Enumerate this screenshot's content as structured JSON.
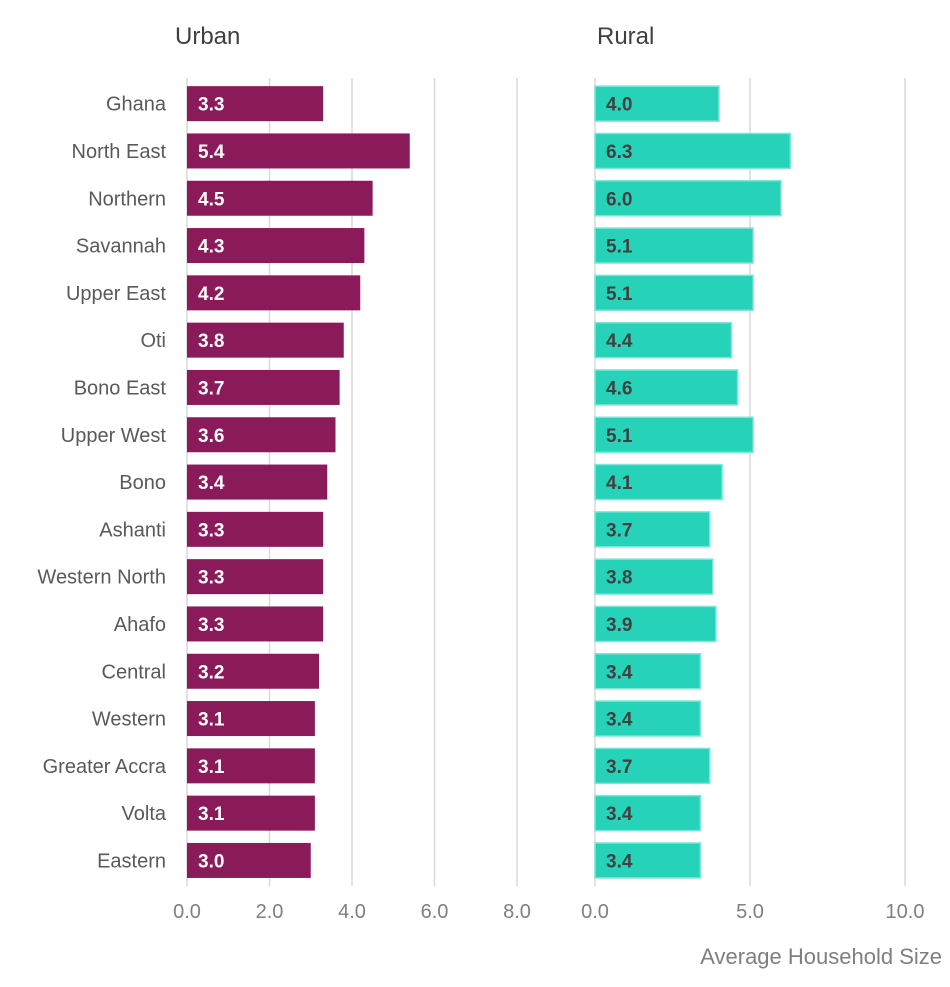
{
  "chart_data": [
    {
      "type": "bar",
      "orientation": "horizontal",
      "title": "Urban",
      "categories": [
        "Ghana",
        "North East",
        "Northern",
        "Savannah",
        "Upper East",
        "Oti",
        "Bono East",
        "Upper West",
        "Bono",
        "Ashanti",
        "Western North",
        "Ahafo",
        "Central",
        "Western",
        "Greater Accra",
        "Volta",
        "Eastern"
      ],
      "values": [
        3.3,
        5.4,
        4.5,
        4.3,
        4.2,
        3.8,
        3.7,
        3.6,
        3.4,
        3.3,
        3.3,
        3.3,
        3.2,
        3.1,
        3.1,
        3.1,
        3.0
      ],
      "xlim": [
        0,
        8
      ],
      "xticks": [
        "0.0",
        "2.0",
        "4.0",
        "6.0",
        "8.0"
      ],
      "xtick_values": [
        0,
        2,
        4,
        6,
        8
      ],
      "grid": true,
      "color": "#8b1a5a"
    },
    {
      "type": "bar",
      "orientation": "horizontal",
      "title": "Rural",
      "categories": [
        "Ghana",
        "North East",
        "Northern",
        "Savannah",
        "Upper East",
        "Oti",
        "Bono East",
        "Upper West",
        "Bono",
        "Ashanti",
        "Western North",
        "Ahafo",
        "Central",
        "Western",
        "Greater Accra",
        "Volta",
        "Eastern"
      ],
      "values": [
        4.0,
        6.3,
        6.0,
        5.1,
        5.1,
        4.4,
        4.6,
        5.1,
        4.1,
        3.7,
        3.8,
        3.9,
        3.4,
        3.4,
        3.7,
        3.4,
        3.4
      ],
      "xlim": [
        0,
        10
      ],
      "xticks": [
        "0.0",
        "5.0",
        "10.0"
      ],
      "xtick_values": [
        0,
        5,
        10
      ],
      "grid": true,
      "color": "#26d3b9",
      "border_color": "#7fe6d5",
      "xlabel": "Average Household Size"
    }
  ]
}
